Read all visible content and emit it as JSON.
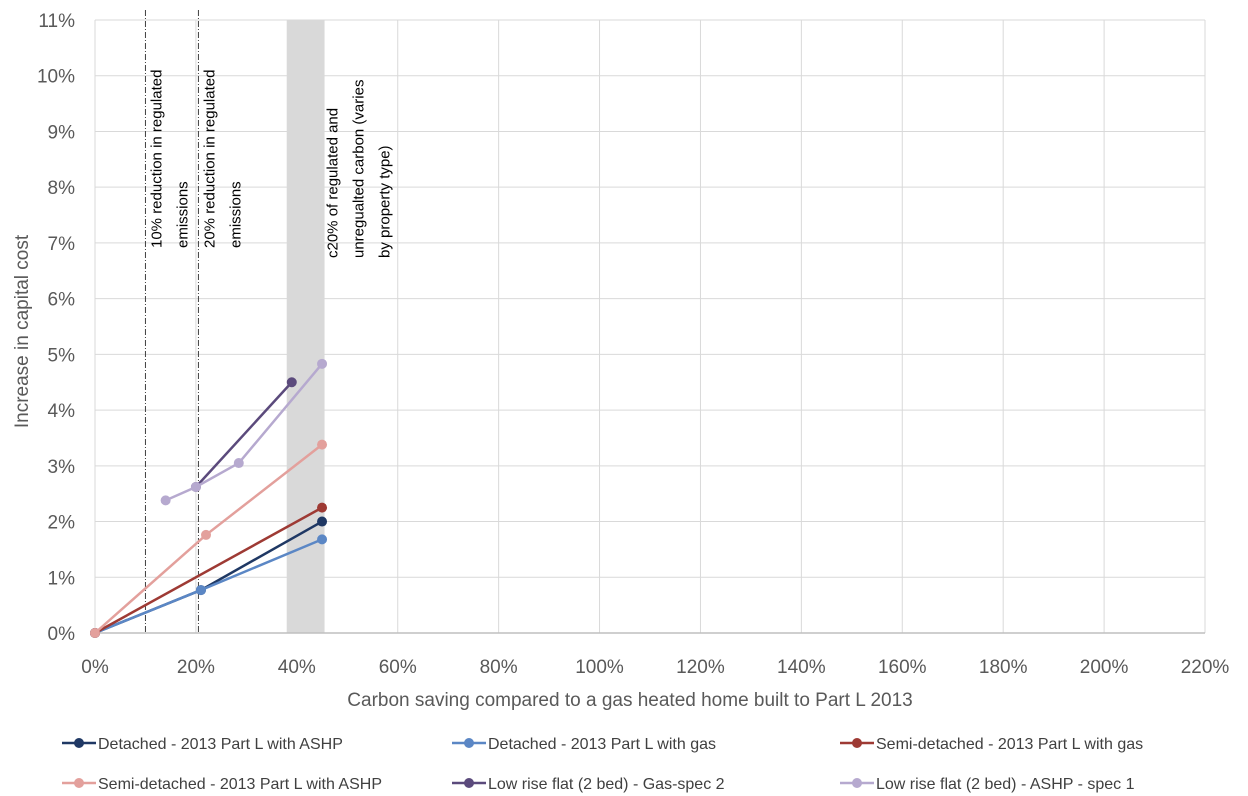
{
  "chart_data": {
    "type": "line",
    "xlabel": "Carbon saving compared to a gas heated home built to Part L 2013",
    "ylabel": "Increase in capital cost",
    "xlim": [
      0,
      220
    ],
    "ylim": [
      0,
      11
    ],
    "x_ticks": [
      "0%",
      "20%",
      "40%",
      "60%",
      "80%",
      "100%",
      "120%",
      "140%",
      "160%",
      "180%",
      "200%",
      "220%"
    ],
    "y_ticks": [
      "0%",
      "1%",
      "2%",
      "3%",
      "4%",
      "5%",
      "6%",
      "7%",
      "8%",
      "9%",
      "10%",
      "11%"
    ],
    "x_unit": "%",
    "y_unit": "%",
    "grid": true,
    "legend_position": "bottom",
    "series": [
      {
        "name": "Detached - 2013 Part L with ASHP",
        "color": "#1f3864",
        "points": [
          [
            0,
            0
          ],
          [
            21,
            0.77
          ],
          [
            45,
            2.0
          ]
        ]
      },
      {
        "name": "Detached - 2013 Part L with gas",
        "color": "#5b87c5",
        "points": [
          [
            0,
            0
          ],
          [
            21,
            0.77
          ],
          [
            45,
            1.68
          ]
        ]
      },
      {
        "name": "Semi-detached - 2013 Part L with gas",
        "color": "#9e3a34",
        "points": [
          [
            0,
            0
          ],
          [
            45,
            2.25
          ]
        ]
      },
      {
        "name": "Semi-detached - 2013 Part L with ASHP",
        "color": "#e3a09c",
        "points": [
          [
            0,
            0
          ],
          [
            22,
            1.76
          ],
          [
            45,
            3.38
          ]
        ]
      },
      {
        "name": "Low rise flat (2 bed) - Gas-spec 2",
        "color": "#5b4a7c",
        "points": [
          [
            20,
            2.62
          ],
          [
            39,
            4.5
          ]
        ]
      },
      {
        "name": "Low rise flat (2 bed) - ASHP - spec 1",
        "color": "#b6a9cf",
        "points": [
          [
            14,
            2.38
          ],
          [
            20,
            2.62
          ],
          [
            28.5,
            3.05
          ],
          [
            45,
            4.83
          ]
        ]
      }
    ],
    "annotations": [
      {
        "type": "vline",
        "x": 10,
        "label": "10% reduction in regulated emissions",
        "lines": [
          "10% reduction in regulated",
          "emissions"
        ]
      },
      {
        "type": "vline",
        "x": 20.5,
        "label": "20% reduction in regulated emissions",
        "lines": [
          "20% reduction in regulated",
          "emissions"
        ]
      },
      {
        "type": "band",
        "x_range": [
          38,
          45.5
        ],
        "label": "c20% of regulated and unregualted carbon (varies by property type)",
        "lines": [
          "c20% of regulated and",
          "unregualted carbon (varies",
          "by property type)"
        ]
      }
    ]
  }
}
